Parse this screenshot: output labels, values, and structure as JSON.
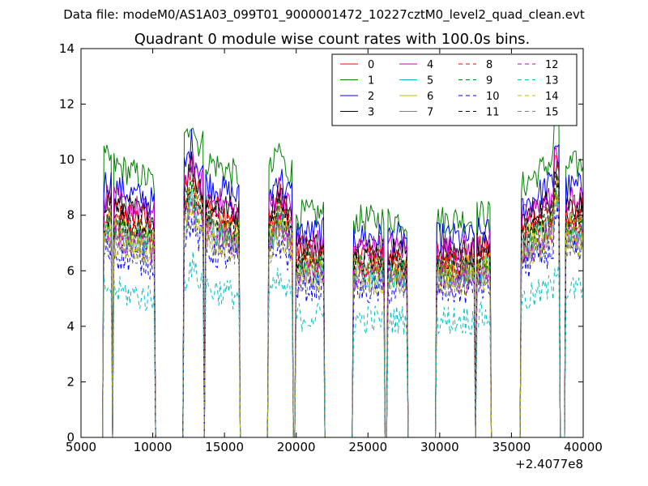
{
  "suptitle": "Data file: modeM0/AS1A03_099T01_9000001472_10227cztM0_level2_quad_clean.evt",
  "chart_data": {
    "type": "line",
    "title": "Quadrant 0 module wise count rates with 100.0s bins.",
    "xlabel": "",
    "ylabel": "",
    "x_offset_label": "+2.4077e8",
    "xlim": [
      5000,
      40000
    ],
    "ylim": [
      0,
      14
    ],
    "xticks": [
      5000,
      10000,
      15000,
      20000,
      25000,
      30000,
      35000,
      40000
    ],
    "yticks": [
      0,
      2,
      4,
      6,
      8,
      10,
      12,
      14
    ],
    "grid": false,
    "legend_placement": "top-right",
    "legend_columns": 4,
    "segments": [
      {
        "start": 6600,
        "end": 7100
      },
      {
        "start": 7300,
        "end": 10100
      },
      {
        "start": 12200,
        "end": 13500
      },
      {
        "start": 13700,
        "end": 16000
      },
      {
        "start": 18100,
        "end": 19700
      },
      {
        "start": 20000,
        "end": 21900
      },
      {
        "start": 24000,
        "end": 26100
      },
      {
        "start": 26400,
        "end": 27700
      },
      {
        "start": 29800,
        "end": 32400
      },
      {
        "start": 32600,
        "end": 33500
      },
      {
        "start": 35700,
        "end": 38300
      },
      {
        "start": 38800,
        "end": 39400
      },
      {
        "start": 39450,
        "end": 40000
      }
    ],
    "series": [
      {
        "name": "0",
        "color": "#ff0000",
        "dashed": false,
        "level": 8.2
      },
      {
        "name": "1",
        "color": "#008000",
        "dashed": false,
        "level": 9.8
      },
      {
        "name": "2",
        "color": "#0000ff",
        "dashed": false,
        "level": 9.0
      },
      {
        "name": "3",
        "color": "#000000",
        "dashed": false,
        "level": 8.4
      },
      {
        "name": "4",
        "color": "#bf00bf",
        "dashed": false,
        "level": 8.5
      },
      {
        "name": "5",
        "color": "#00bfbf",
        "dashed": false,
        "level": 7.4
      },
      {
        "name": "6",
        "color": "#bfbf00",
        "dashed": false,
        "level": 7.6
      },
      {
        "name": "7",
        "color": "#808080",
        "dashed": false,
        "level": 7.3
      },
      {
        "name": "8",
        "color": "#ff0000",
        "dashed": true,
        "level": 7.8
      },
      {
        "name": "9",
        "color": "#008000",
        "dashed": true,
        "level": 7.6
      },
      {
        "name": "10",
        "color": "#0000ff",
        "dashed": true,
        "level": 6.6
      },
      {
        "name": "11",
        "color": "#000000",
        "dashed": true,
        "level": 7.9
      },
      {
        "name": "12",
        "color": "#bf00bf",
        "dashed": true,
        "level": 7.2
      },
      {
        "name": "13",
        "color": "#00bfbf",
        "dashed": true,
        "level": 5.3
      },
      {
        "name": "14",
        "color": "#bfbf00",
        "dashed": true,
        "level": 7.0
      },
      {
        "name": "15",
        "color": "#808080",
        "dashed": true,
        "level": 6.9
      }
    ]
  }
}
